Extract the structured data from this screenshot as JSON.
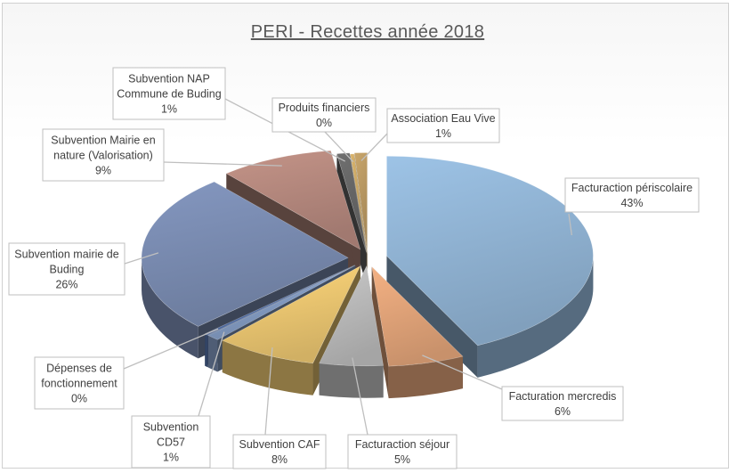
{
  "chart_data": {
    "type": "pie",
    "title": "PERI - Recettes année 2018",
    "three_d": true,
    "exploded": true,
    "legend": "none",
    "slices": [
      {
        "label": "Facturaction périscolaire",
        "percent": "43%",
        "value": 43,
        "color": "#9dc3e6"
      },
      {
        "label": "Facturation mercredis",
        "percent": "6%",
        "value": 6,
        "color": "#f4b183"
      },
      {
        "label": "Facturaction séjour",
        "percent": "5%",
        "value": 5,
        "color": "#c9c9c9"
      },
      {
        "label": "Subvention CAF",
        "percent": "8%",
        "value": 8,
        "color": "#ffd77a"
      },
      {
        "label": "Subvention CD57",
        "percent": "1%",
        "value": 1,
        "color": "#8fa9d4"
      },
      {
        "label": "Dépenses de fonctionnement",
        "percent": "0%",
        "value": 0.3,
        "color": "#5b7bb8"
      },
      {
        "label": "Subvention mairie de Buding",
        "percent": "26%",
        "value": 26,
        "color": "#8497c0"
      },
      {
        "label": "Subvention Mairie en nature (Valorisation)",
        "percent": "9%",
        "value": 9,
        "color": "#c49488"
      },
      {
        "label": "Subvention NAP Commune de Buding",
        "percent": "1%",
        "value": 1,
        "color": "#6f6f6f"
      },
      {
        "label": "Produits financiers",
        "percent": "0%",
        "value": 0.3,
        "color": "#d9b36b"
      },
      {
        "label": "Association Eau Vive",
        "percent": "1%",
        "value": 1,
        "color": "#c9a66b"
      }
    ]
  }
}
